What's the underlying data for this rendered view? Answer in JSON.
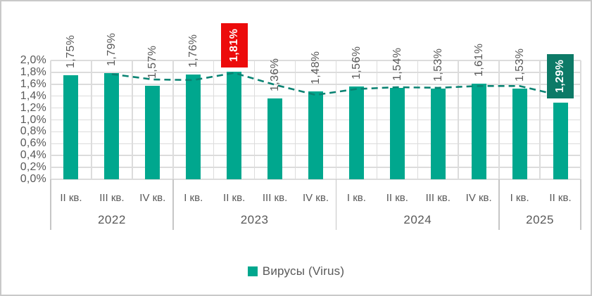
{
  "chart_data": {
    "type": "bar",
    "title": "",
    "unit": "%",
    "groups": [
      {
        "year": "2022",
        "quarters": [
          "II кв.",
          "III кв.",
          "IV кв."
        ]
      },
      {
        "year": "2023",
        "quarters": [
          "I кв.",
          "II кв.",
          "III кв.",
          "IV кв."
        ]
      },
      {
        "year": "2024",
        "quarters": [
          "I кв.",
          "II кв.",
          "III кв.",
          "IV кв."
        ]
      },
      {
        "year": "2025",
        "quarters": [
          "I кв.",
          "II кв."
        ]
      }
    ],
    "series": [
      {
        "name": "Вирусы (Virus)",
        "values": [
          1.75,
          1.79,
          1.57,
          1.76,
          1.81,
          1.36,
          1.48,
          1.56,
          1.54,
          1.53,
          1.61,
          1.53,
          1.29
        ],
        "labels": [
          "1,75%",
          "1,79%",
          "1,57%",
          "1,76%",
          "1,81%",
          "1,36%",
          "1,48%",
          "1,56%",
          "1,54%",
          "1,53%",
          "1,61%",
          "1,53%",
          "1,29%"
        ]
      }
    ],
    "highlights": [
      {
        "index": 4,
        "label": "1,81%",
        "type": "peak",
        "bg": "#ec0b0b",
        "fg": "#ffffff"
      },
      {
        "index": 12,
        "label": "1,29%",
        "type": "latest",
        "bg": "#0d7a67",
        "fg": "#ffffff"
      }
    ],
    "trendline": {
      "style": "dashed",
      "color": "#0b8373",
      "values": [
        null,
        1.77,
        1.68,
        1.67,
        1.79,
        1.59,
        1.42,
        1.52,
        1.55,
        1.54,
        1.57,
        1.57,
        1.41
      ]
    },
    "y_axis": {
      "ticks": [
        "2,0%",
        "1,8%",
        "1,6%",
        "1,4%",
        "1,2%",
        "1,0%",
        "0,8%",
        "0,6%",
        "0,4%",
        "0,2%",
        "0,0%"
      ],
      "min": 0,
      "max": 2.0,
      "step": 0.2
    },
    "legend": {
      "label": "Вирусы (Virus)",
      "position": "bottom"
    },
    "colors": {
      "bar": "#00a78e",
      "grid": "#dcdcdc",
      "axis_text": "#595959",
      "separator": "#c6c6c6"
    }
  }
}
